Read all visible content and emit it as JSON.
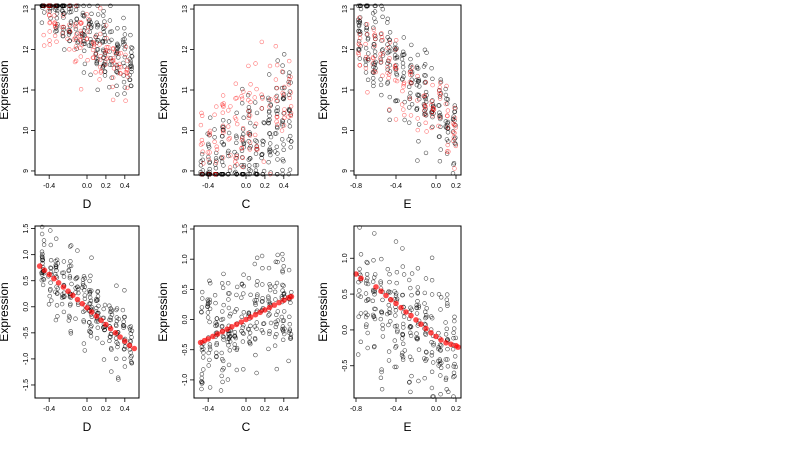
{
  "chart_data": [
    {
      "type": "scatter",
      "xlabel": "D",
      "ylabel": "Expression",
      "xlim": [
        -0.55,
        0.55
      ],
      "ylim": [
        8.9,
        13.1
      ],
      "xticks": [
        -0.4,
        0.0,
        0.2,
        0.4
      ],
      "xtick_labels": [
        "-0.4",
        "0.0",
        "0.2",
        "0.4"
      ],
      "yticks": [
        9,
        10,
        11,
        12,
        13
      ],
      "ytick_labels": [
        "9",
        "10",
        "11",
        "12",
        "13"
      ],
      "grid": false,
      "legend": "none",
      "series": [
        {
          "color": "#000000",
          "filled": false,
          "kind": "observed",
          "cloud": {
            "x_range": [
              -0.5,
              0.5
            ],
            "n": 260,
            "trend": [
              12.4,
              -2.0,
              0.9
            ],
            "spread": 0.45
          }
        },
        {
          "color": "#ff0000",
          "filled": false,
          "kind": "fitted-open",
          "cloud": {
            "x_range": [
              -0.5,
              0.45
            ],
            "n": 120,
            "trend": [
              12.1,
              -1.7,
              0.6
            ],
            "spread": 0.35
          }
        }
      ]
    },
    {
      "type": "scatter",
      "xlabel": "C",
      "ylabel": "Expression",
      "xlim": [
        -0.55,
        0.55
      ],
      "ylim": [
        8.9,
        13.1
      ],
      "xticks": [
        -0.4,
        0.0,
        0.2,
        0.4
      ],
      "xtick_labels": [
        "-0.4",
        "0.0",
        "0.2",
        "0.4"
      ],
      "yticks": [
        9,
        10,
        11,
        12,
        13
      ],
      "ytick_labels": [
        "9",
        "10",
        "11",
        "12",
        "13"
      ],
      "grid": false,
      "legend": "none",
      "series": [
        {
          "color": "#000000",
          "filled": false,
          "kind": "observed",
          "cloud": {
            "x_range": [
              -0.5,
              0.5
            ],
            "n": 260,
            "trend": [
              9.4,
              1.6,
              0.0
            ],
            "spread": 0.75
          }
        },
        {
          "color": "#ff0000",
          "filled": false,
          "kind": "fitted-open",
          "cloud": {
            "x_range": [
              -0.5,
              0.5
            ],
            "n": 120,
            "trend": [
              10.3,
              1.5,
              0.0
            ],
            "spread": 0.7
          }
        }
      ]
    },
    {
      "type": "scatter",
      "xlabel": "E",
      "ylabel": "Expression",
      "xlim": [
        -0.82,
        0.25
      ],
      "ylim": [
        8.9,
        13.1
      ],
      "xticks": [
        -0.8,
        -0.4,
        0.0,
        0.2
      ],
      "xtick_labels": [
        "-0.8",
        "-0.4",
        "0.0",
        "0.2"
      ],
      "yticks": [
        9,
        10,
        11,
        12,
        13
      ],
      "ytick_labels": [
        "9",
        "10",
        "11",
        "12",
        "13"
      ],
      "grid": false,
      "legend": "none",
      "series": [
        {
          "color": "#000000",
          "filled": false,
          "kind": "observed",
          "cloud": {
            "x_range": [
              -0.8,
              0.22
            ],
            "n": 260,
            "trend": [
              10.5,
              -2.6,
              0.0
            ],
            "spread": 0.55
          }
        },
        {
          "color": "#ff0000",
          "filled": false,
          "kind": "fitted-open",
          "cloud": {
            "x_range": [
              -0.8,
              0.22
            ],
            "n": 120,
            "trend": [
              10.4,
              -2.5,
              0.0
            ],
            "spread": 0.4
          }
        }
      ]
    },
    {
      "type": "scatter",
      "xlabel": "D",
      "ylabel": "Expression",
      "xlim": [
        -0.55,
        0.55
      ],
      "ylim": [
        -1.75,
        1.55
      ],
      "xticks": [
        -0.4,
        0.0,
        0.2,
        0.4
      ],
      "xtick_labels": [
        "-0.4",
        "0.0",
        "0.2",
        "0.4"
      ],
      "yticks": [
        -1.5,
        -1.0,
        -0.5,
        0.0,
        0.5,
        1.0,
        1.5
      ],
      "ytick_labels": [
        "-1.5",
        "-1.0",
        "-0.5",
        "0.0",
        "0.5",
        "1.0",
        "1.5"
      ],
      "grid": false,
      "legend": "none",
      "series": [
        {
          "color": "#000000",
          "filled": false,
          "kind": "observed",
          "cloud": {
            "x_range": [
              -0.5,
              0.5
            ],
            "n": 260,
            "trend": [
              0.0,
              -1.6,
              0.0
            ],
            "spread": 0.35
          }
        },
        {
          "color": "#ff0000",
          "filled": true,
          "kind": "fitted",
          "x": [
            -0.5,
            -0.45,
            -0.4,
            -0.35,
            -0.3,
            -0.25,
            -0.2,
            -0.15,
            -0.1,
            -0.05,
            0.0,
            0.05,
            0.1,
            0.15,
            0.2,
            0.25,
            0.3,
            0.35,
            0.4,
            0.45,
            0.5
          ],
          "y": [
            0.78,
            0.7,
            0.62,
            0.54,
            0.46,
            0.38,
            0.3,
            0.22,
            0.14,
            0.06,
            -0.02,
            -0.1,
            -0.18,
            -0.26,
            -0.34,
            -0.42,
            -0.5,
            -0.58,
            -0.66,
            -0.74,
            -0.8
          ]
        }
      ]
    },
    {
      "type": "scatter",
      "xlabel": "C",
      "ylabel": "Expression",
      "xlim": [
        -0.55,
        0.55
      ],
      "ylim": [
        -1.3,
        1.55
      ],
      "xticks": [
        -0.4,
        0.0,
        0.2,
        0.4
      ],
      "xtick_labels": [
        "-0.4",
        "0.0",
        "0.2",
        "0.4"
      ],
      "yticks": [
        -1.0,
        -0.5,
        0.0,
        0.5,
        1.0,
        1.5
      ],
      "ytick_labels": [
        "-1.0",
        "-0.5",
        "0.0",
        "0.5",
        "1.0",
        "1.5"
      ],
      "grid": false,
      "legend": "none",
      "series": [
        {
          "color": "#000000",
          "filled": false,
          "kind": "observed",
          "cloud": {
            "x_range": [
              -0.5,
              0.5
            ],
            "n": 260,
            "trend": [
              0.0,
              0.8,
              0.0
            ],
            "spread": 0.45
          }
        },
        {
          "color": "#ff0000",
          "filled": true,
          "kind": "fitted",
          "x": [
            -0.48,
            -0.44,
            -0.4,
            -0.35,
            -0.3,
            -0.25,
            -0.2,
            -0.15,
            -0.1,
            -0.05,
            0.0,
            0.05,
            0.1,
            0.15,
            0.2,
            0.25,
            0.3,
            0.35,
            0.4,
            0.45,
            0.48
          ],
          "y": [
            -0.38,
            -0.35,
            -0.32,
            -0.28,
            -0.24,
            -0.2,
            -0.16,
            -0.12,
            -0.08,
            -0.04,
            0.0,
            0.04,
            0.08,
            0.12,
            0.16,
            0.2,
            0.24,
            0.28,
            0.32,
            0.36,
            0.38
          ]
        }
      ]
    },
    {
      "type": "scatter",
      "xlabel": "E",
      "ylabel": "Expression",
      "xlim": [
        -0.82,
        0.25
      ],
      "ylim": [
        -0.95,
        1.45
      ],
      "xticks": [
        -0.8,
        -0.4,
        0.0,
        0.2
      ],
      "xtick_labels": [
        "-0.8",
        "-0.4",
        "0.0",
        "0.2"
      ],
      "yticks": [
        -0.5,
        0.0,
        0.5,
        1.0
      ],
      "ytick_labels": [
        "-0.5",
        "0.0",
        "0.5",
        "1.0"
      ],
      "grid": false,
      "legend": "none",
      "series": [
        {
          "color": "#000000",
          "filled": false,
          "kind": "observed",
          "cloud": {
            "x_range": [
              -0.8,
              0.22
            ],
            "n": 260,
            "trend": [
              -0.15,
              -1.0,
              0.0
            ],
            "spread": 0.45
          }
        },
        {
          "color": "#ff0000",
          "filled": true,
          "kind": "fitted",
          "x": [
            -0.8,
            -0.75,
            -0.6,
            -0.55,
            -0.5,
            -0.45,
            -0.4,
            -0.35,
            -0.3,
            -0.25,
            -0.2,
            -0.15,
            -0.1,
            -0.05,
            0.0,
            0.05,
            0.1,
            0.15,
            0.2,
            0.22
          ],
          "y": [
            0.78,
            0.72,
            0.6,
            0.54,
            0.48,
            0.42,
            0.37,
            0.31,
            0.25,
            0.2,
            0.14,
            0.08,
            0.02,
            -0.04,
            -0.09,
            -0.14,
            -0.18,
            -0.2,
            -0.22,
            -0.24
          ]
        }
      ]
    }
  ]
}
